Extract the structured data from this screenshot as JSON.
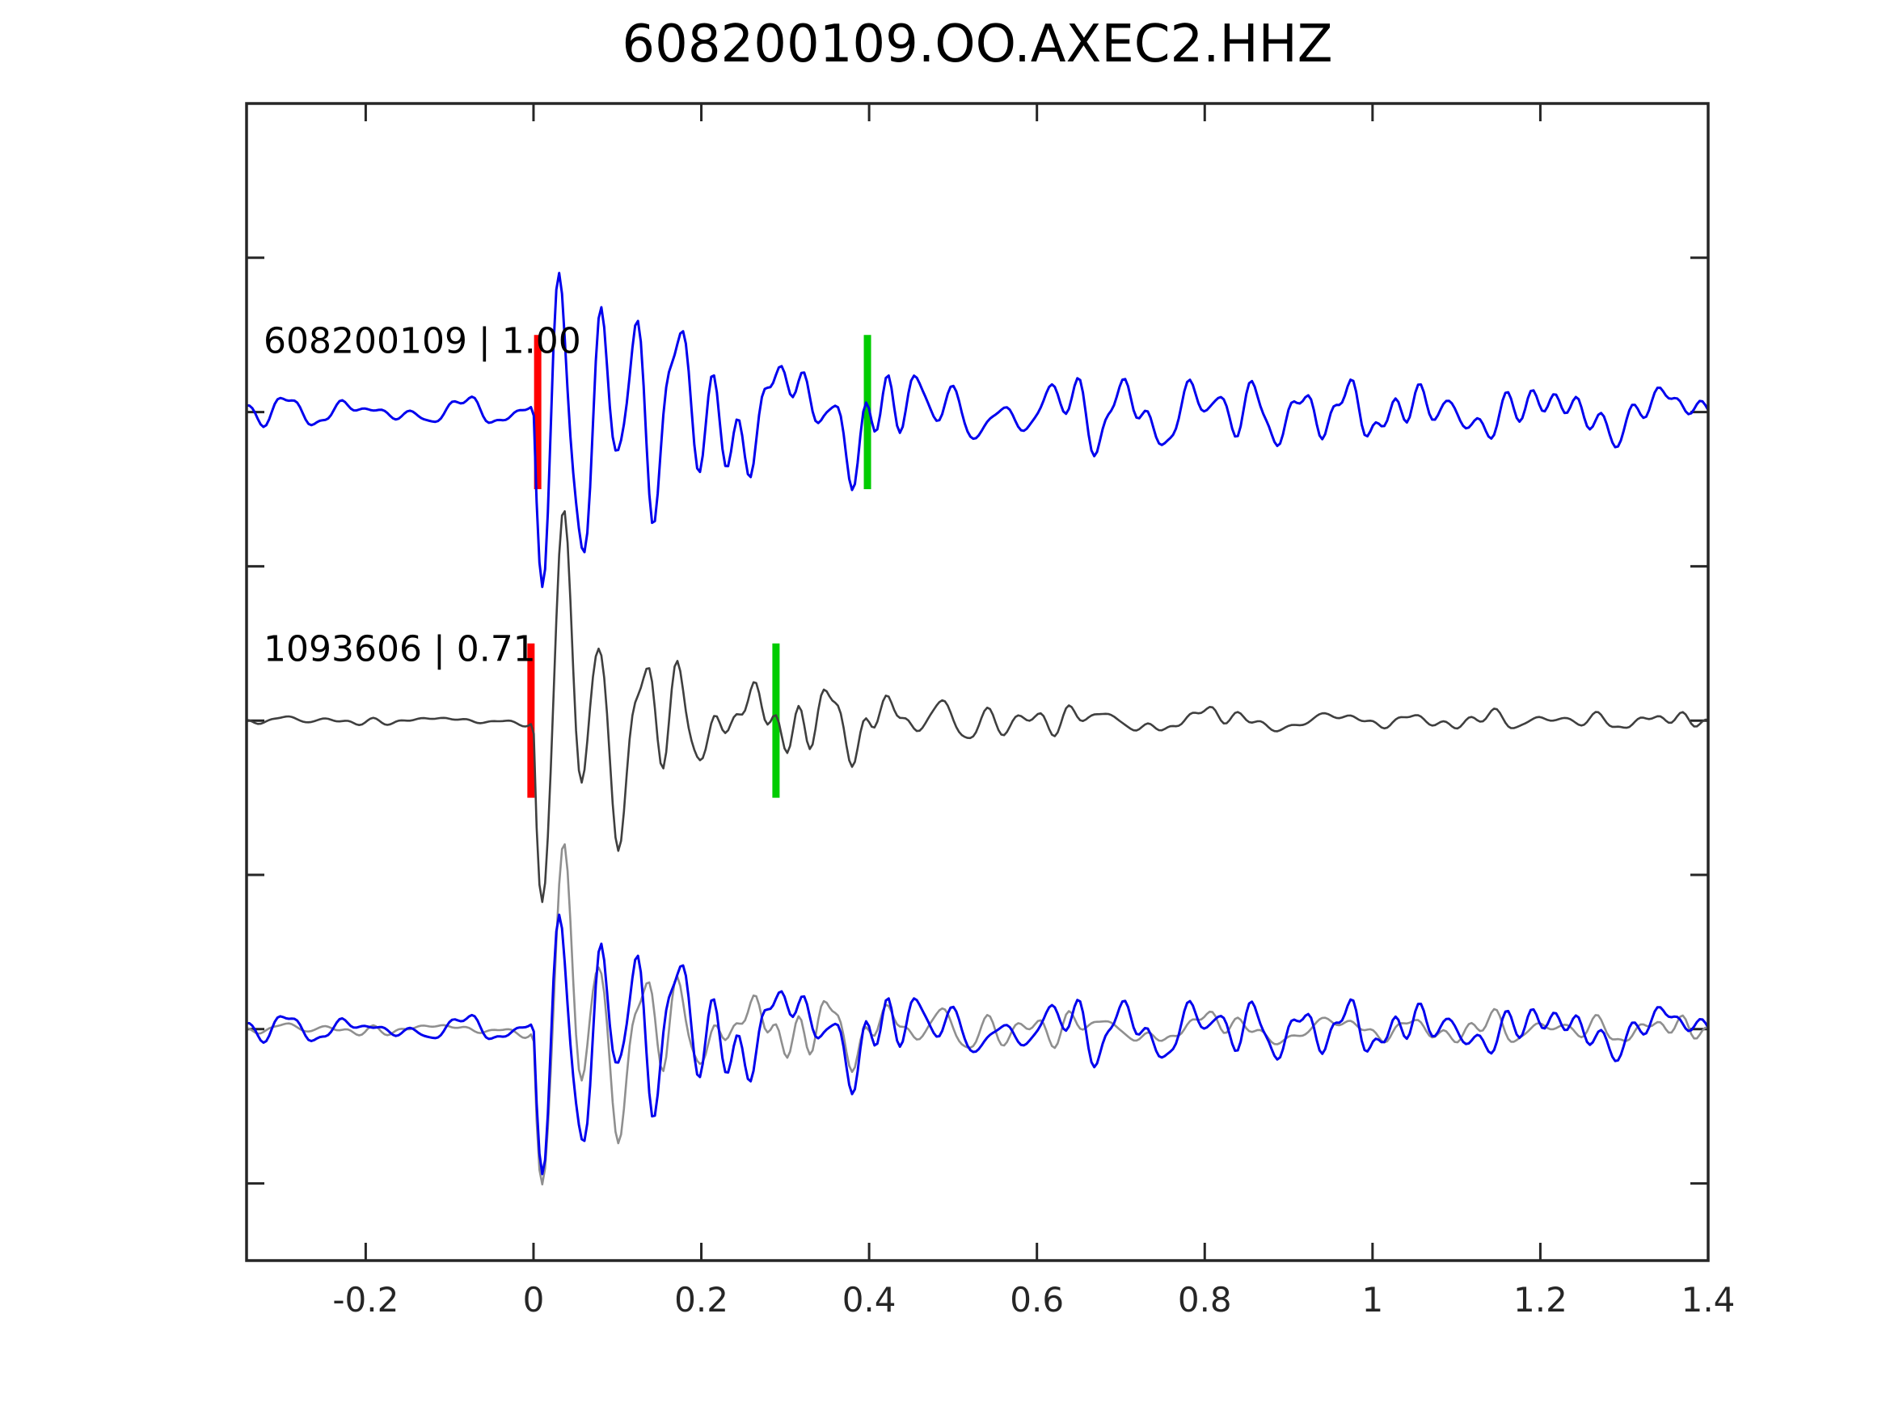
{
  "title": "608200109.OO.AXEC2.HHZ",
  "colors": {
    "background": "#ffffff",
    "frame": "#262626",
    "detection_trace": "#0000ee",
    "template_trace": "#3f3f3f",
    "overlay_template_trace": "#8f8f8f",
    "pick_marker": "#ff0000",
    "window_end_marker": "#00cc00",
    "text": "#000000"
  },
  "chart_data": {
    "type": "line",
    "subtype": "seismic-waveform-correlation",
    "title": "608200109.OO.AXEC2.HHZ",
    "xlabel": "",
    "ylabel": "",
    "xlim": [
      -0.342,
      1.4
    ],
    "ylim": [
      -3.5,
      4.0
    ],
    "xtick_values": [
      -0.2,
      0,
      0.2,
      0.4,
      0.6,
      0.8,
      1,
      1.2,
      1.4
    ],
    "xtick_labels": [
      "-0.2",
      "0",
      "0.2",
      "0.4",
      "0.6",
      "0.8",
      "1",
      "1.2",
      "1.4"
    ],
    "ytick_values": [
      -3,
      -2,
      -1,
      0,
      1,
      2,
      3
    ],
    "ytick_labels": [],
    "grid": false,
    "legend": false,
    "tick_direction": "in",
    "pick_half_height": 0.5,
    "pick_width": 9,
    "traces": [
      {
        "id": "detection",
        "label": "608200109 | 1.00",
        "event_id": "608200109",
        "correlation": 1.0,
        "color": "#0000ee",
        "line_width": 3,
        "offset": 2,
        "seed": 20109,
        "picks": [
          {
            "name": "pick-time",
            "color": "#ff0000",
            "t": 0.005
          },
          {
            "name": "window-end",
            "color": "#00cc00",
            "t": 0.398
          }
        ],
        "noise_envelope": [
          [
            -0.342,
            0.11
          ],
          [
            0,
            0.12
          ],
          [
            0.025,
            0.7
          ],
          [
            0.1,
            0.55
          ],
          [
            0.3,
            0.34
          ],
          [
            0.6,
            0.27
          ],
          [
            1,
            0.22
          ],
          [
            1.4,
            0.2
          ]
        ],
        "onset_wavelet": {
          "t0": 0,
          "amp": 1.4,
          "freq": 22,
          "tau": 0.1
        }
      },
      {
        "id": "template",
        "label": "1093606 | 0.71",
        "event_id": "1093606",
        "correlation": 0.71,
        "color": "#3f3f3f",
        "line_width": 2.6,
        "offset": 0,
        "seed": 93606,
        "picks": [
          {
            "name": "pick-time",
            "color": "#ff0000",
            "t": -0.003
          },
          {
            "name": "window-end",
            "color": "#00cc00",
            "t": 0.289
          }
        ],
        "noise_envelope": [
          [
            -0.342,
            0.03
          ],
          [
            0,
            0.03
          ],
          [
            0.025,
            0.6
          ],
          [
            0.1,
            0.45
          ],
          [
            0.3,
            0.25
          ],
          [
            0.6,
            0.12
          ],
          [
            1,
            0.06
          ],
          [
            1.4,
            0.05
          ]
        ],
        "onset_wavelet": {
          "t0": 0,
          "amp": 1.5,
          "freq": 22,
          "tau": 0.09
        }
      },
      {
        "id": "overlay-template",
        "label": "",
        "color": "#8f8f8f",
        "line_width": 2.6,
        "offset": -2,
        "seed": 93606,
        "picks": [],
        "noise_envelope": [
          [
            -0.342,
            0.04
          ],
          [
            0,
            0.045
          ],
          [
            0.025,
            0.55
          ],
          [
            0.1,
            0.4
          ],
          [
            0.3,
            0.22
          ],
          [
            0.7,
            0.12
          ],
          [
            1.4,
            0.08
          ]
        ],
        "onset_wavelet": {
          "t0": 0,
          "amp": 1.3,
          "freq": 22,
          "tau": 0.09
        }
      },
      {
        "id": "overlay-detection",
        "label": "",
        "color": "#0000ee",
        "line_width": 3,
        "offset": -2,
        "seed": 20109,
        "picks": [],
        "noise_envelope": [
          [
            -0.342,
            0.1
          ],
          [
            0,
            0.11
          ],
          [
            0.025,
            0.5
          ],
          [
            0.1,
            0.42
          ],
          [
            0.3,
            0.28
          ],
          [
            0.7,
            0.22
          ],
          [
            1.4,
            0.18
          ]
        ],
        "onset_wavelet": {
          "t0": 0,
          "amp": 1.15,
          "freq": 22,
          "tau": 0.1
        }
      }
    ]
  }
}
